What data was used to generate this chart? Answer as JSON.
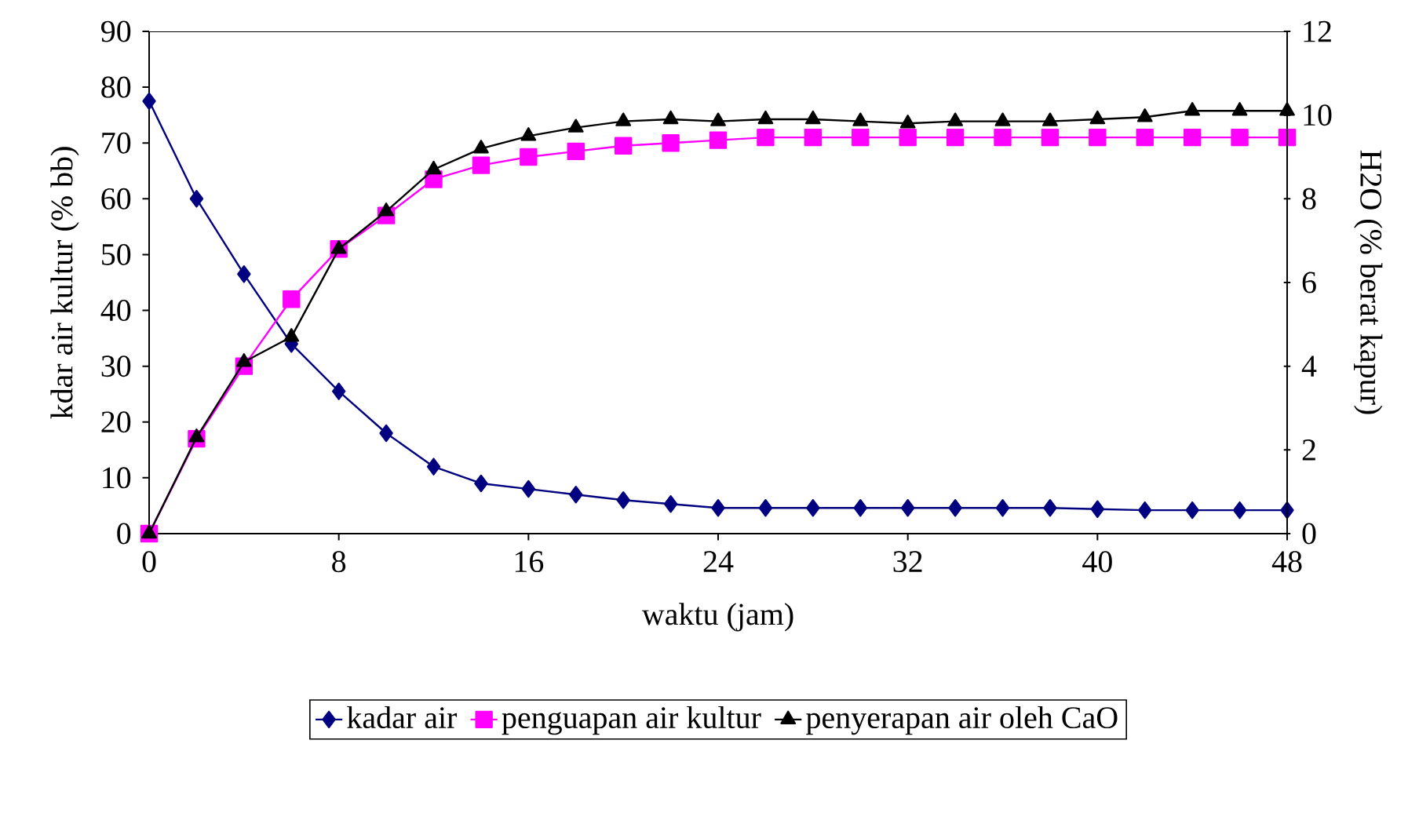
{
  "chart_data": {
    "type": "line",
    "xlabel": "waktu (jam)",
    "ylabel": "kdar air kultur (% bb)",
    "y2label": "H2O (% berat kapur)",
    "x": [
      0,
      2,
      4,
      6,
      8,
      10,
      12,
      14,
      16,
      18,
      20,
      22,
      24,
      26,
      28,
      30,
      32,
      34,
      36,
      38,
      40,
      42,
      44,
      46,
      48
    ],
    "xlim": [
      0,
      48
    ],
    "xticks": [
      0,
      8,
      16,
      24,
      32,
      40,
      48
    ],
    "ylim": [
      0,
      90
    ],
    "yticks": [
      0,
      10,
      20,
      30,
      40,
      50,
      60,
      70,
      80,
      90
    ],
    "y2lim": [
      0,
      12
    ],
    "y2ticks": [
      0,
      2,
      4,
      6,
      8,
      10,
      12
    ],
    "legend": "bottom",
    "grid": false,
    "series": [
      {
        "name": "kadar air",
        "color": "#000080",
        "marker": "diamond",
        "values": [
          77.5,
          60,
          46.5,
          34,
          25.5,
          18,
          12,
          9,
          8,
          7,
          6,
          5.3,
          4.6,
          4.6,
          4.6,
          4.6,
          4.6,
          4.6,
          4.6,
          4.6,
          4.4,
          4.2,
          4.2,
          4.2,
          4.2
        ]
      },
      {
        "name": "penguapan air kultur",
        "color": "#ff00ff",
        "marker": "square",
        "values": [
          0,
          17,
          30,
          42,
          51,
          57,
          63.5,
          66,
          67.5,
          68.5,
          69.5,
          70,
          70.5,
          71,
          71,
          71,
          71,
          71,
          71,
          71,
          71,
          71,
          71,
          71,
          71
        ]
      },
      {
        "name": "penyerapan air oleh CaO",
        "color": "#000000",
        "marker": "triangle",
        "axis": "y2",
        "values": [
          0,
          2.3,
          4.1,
          4.7,
          6.8,
          7.7,
          8.7,
          9.2,
          9.5,
          9.7,
          9.85,
          9.9,
          9.85,
          9.9,
          9.9,
          9.85,
          9.8,
          9.85,
          9.85,
          9.85,
          9.9,
          9.95,
          10.1,
          10.1,
          10.1
        ]
      }
    ]
  }
}
